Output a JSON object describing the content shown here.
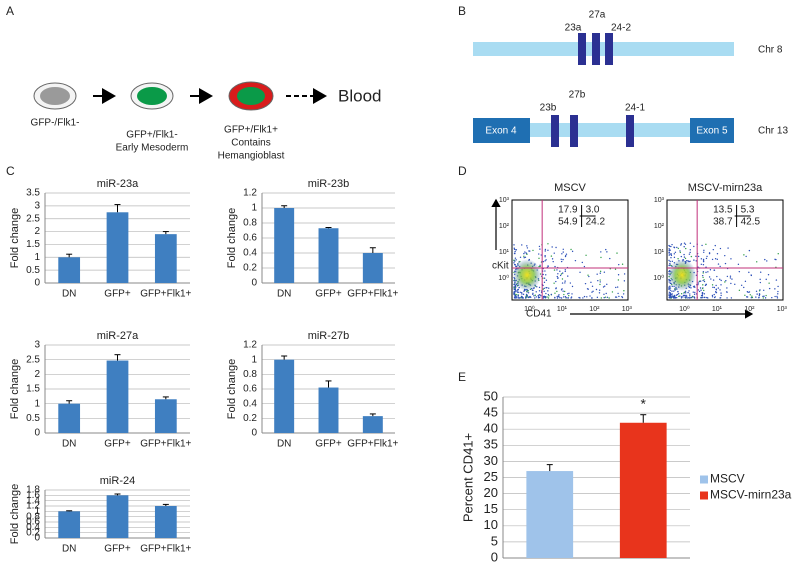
{
  "panel_labels": [
    "A",
    "B",
    "C",
    "D",
    "E"
  ],
  "diagram_a": {
    "cells": [
      {
        "lines": [
          "GFP-/Flk1-"
        ]
      },
      {
        "lines": [
          "GFP+/Flk1-",
          "Early Mesoderm"
        ]
      },
      {
        "lines": [
          "GFP+/Flk1+",
          "Contains",
          "Hemangioblast"
        ]
      }
    ],
    "end_label": "Blood"
  },
  "diagram_b": {
    "chr8": {
      "label": "Chr 8",
      "mirs": [
        "23a",
        "27a",
        "24-2"
      ]
    },
    "chr13": {
      "label": "Chr 13",
      "exons": [
        "Exon 4",
        "Exon 5"
      ],
      "mirs": [
        "23b",
        "27b",
        "24-1"
      ]
    }
  },
  "flow": {
    "y_label": "cKit",
    "x_label": "CD41",
    "ticks": [
      "10⁰",
      "10¹",
      "10²",
      "10³"
    ],
    "plots": [
      {
        "title": "MSCV",
        "quadrants": [
          "17.9",
          "3.0",
          "54.9",
          "24.2"
        ]
      },
      {
        "title": "MSCV-mirn23a",
        "quadrants": [
          "13.5",
          "5.3",
          "38.7",
          "42.5"
        ]
      }
    ]
  },
  "chart_data": [
    {
      "type": "bar",
      "title": "miR-23a",
      "y_label": "Fold change",
      "categories": [
        "DN",
        "GFP+",
        "GFP+Flk1+"
      ],
      "values": [
        1,
        2.75,
        1.9
      ],
      "errors": [
        0.12,
        0.3,
        0.1
      ],
      "color": "#3f7fc1",
      "ylim": [
        0,
        3.5
      ],
      "yticks": [
        0,
        0.5,
        1,
        1.5,
        2,
        2.5,
        3,
        3.5
      ],
      "grid": true
    },
    {
      "type": "bar",
      "title": "miR-23b",
      "y_label": "Fold change",
      "categories": [
        "DN",
        "GFP+",
        "GFP+Flk1+"
      ],
      "values": [
        1,
        0.73,
        0.4
      ],
      "errors": [
        0.03,
        0.01,
        0.07
      ],
      "color": "#3f7fc1",
      "ylim": [
        0,
        1.2
      ],
      "yticks": [
        0,
        0.2,
        0.4,
        0.6,
        0.8,
        1,
        1.2
      ],
      "grid": true
    },
    {
      "type": "bar",
      "title": "miR-27a",
      "y_label": "Fold change",
      "categories": [
        "DN",
        "GFP+",
        "GFP+Flk1+"
      ],
      "values": [
        1,
        2.47,
        1.15
      ],
      "errors": [
        0.1,
        0.2,
        0.08
      ],
      "color": "#3f7fc1",
      "ylim": [
        0,
        3
      ],
      "yticks": [
        0,
        0.5,
        1,
        1.5,
        2,
        2.5,
        3
      ],
      "grid": true
    },
    {
      "type": "bar",
      "title": "miR-27b",
      "y_label": "Fold change",
      "categories": [
        "DN",
        "GFP+",
        "GFP+Flk1+"
      ],
      "values": [
        1,
        0.62,
        0.23
      ],
      "errors": [
        0.05,
        0.09,
        0.03
      ],
      "color": "#3f7fc1",
      "ylim": [
        0,
        1.2
      ],
      "yticks": [
        0,
        0.2,
        0.4,
        0.6,
        0.8,
        1,
        1.2
      ],
      "grid": true
    },
    {
      "type": "bar",
      "title": "miR-24",
      "y_label": "Fold change",
      "categories": [
        "DN",
        "GFP+",
        "GFP+Flk1+"
      ],
      "values": [
        1,
        1.6,
        1.2
      ],
      "errors": [
        0.02,
        0.05,
        0.06
      ],
      "color": "#3f7fc1",
      "ylim": [
        0,
        1.8
      ],
      "yticks": [
        0,
        0.2,
        0.4,
        0.6,
        0.8,
        1,
        1.2,
        1.4,
        1.6,
        1.8
      ],
      "grid": true
    },
    {
      "type": "bar",
      "y_label": "Percent CD41+",
      "annotation": "*",
      "series": [
        {
          "name": "MSCV",
          "color": "#9fc3ea",
          "values": [
            27
          ],
          "errors": [
            2
          ]
        },
        {
          "name": "MSCV-mirn23a",
          "color": "#e8341c",
          "values": [
            42
          ],
          "errors": [
            2.5
          ]
        }
      ],
      "ylim": [
        0,
        50
      ],
      "yticks": [
        0,
        5,
        10,
        15,
        20,
        25,
        30,
        35,
        40,
        45,
        50
      ],
      "grid": true,
      "legend": "right"
    }
  ]
}
